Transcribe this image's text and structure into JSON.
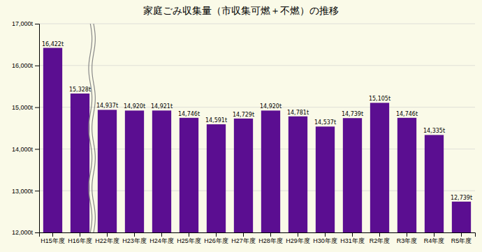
{
  "chart_data": {
    "type": "bar",
    "title": "家庭ごみ収集量（市収集可燃＋不燃）の推移",
    "categories": [
      "H15年度",
      "H16年度",
      "H22年度",
      "H23年度",
      "H24年度",
      "H25年度",
      "H26年度",
      "H27年度",
      "H28年度",
      "H29年度",
      "H30年度",
      "H31年度",
      "R2年度",
      "R3年度",
      "R4年度",
      "R5年度"
    ],
    "values": [
      16422,
      15328,
      14937,
      14920,
      14921,
      14746,
      14591,
      14729,
      14920,
      14781,
      14537,
      14739,
      15105,
      14746,
      14335,
      12739
    ],
    "value_labels": [
      "16,422t",
      "15,328t",
      "14,937t",
      "14,920t",
      "14,921t",
      "14,746t",
      "14,591t",
      "14,729t",
      "14,920t",
      "14,781t",
      "14,537t",
      "14,739t",
      "15,105t",
      "14,746t",
      "14,335t",
      "12,739t"
    ],
    "data_labels": true,
    "color": "#5b0e91",
    "ylim": [
      12000,
      17000
    ],
    "yticks": [
      {
        "value": 12000,
        "label": "12,000t"
      },
      {
        "value": 13000,
        "label": "13,000t"
      },
      {
        "value": 14000,
        "label": "14,000t"
      },
      {
        "value": 15000,
        "label": "15,000t"
      },
      {
        "value": 16000,
        "label": "16,000t"
      },
      {
        "value": 17000,
        "label": "17,000t"
      }
    ],
    "grid": true
  }
}
